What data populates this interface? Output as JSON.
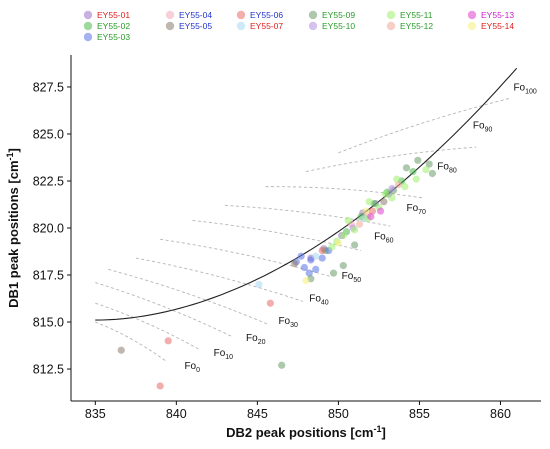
{
  "chart_data": {
    "type": "scatter",
    "title": "",
    "xlabel": "DB2 peak positions [cm",
    "xlabel_sup": "-1",
    "xlabel_end": "]",
    "ylabel": "DB1 peak positions [cm",
    "ylabel_sup": "-1",
    "ylabel_end": "]",
    "xlim": [
      833.5,
      862.5
    ],
    "ylim": [
      810.8,
      829.2
    ],
    "xticks": [
      835,
      840,
      845,
      850,
      855,
      860
    ],
    "yticks": [
      812.5,
      815.0,
      817.5,
      820.0,
      822.5,
      825.0,
      827.5
    ],
    "xtick_labels": [
      "835",
      "840",
      "845",
      "850",
      "855",
      "860"
    ],
    "ytick_labels": [
      "812.5",
      "815.0",
      "817.5",
      "820.0",
      "822.5",
      "825.0",
      "827.5"
    ],
    "legend_position": "top",
    "grid": false,
    "series": [
      {
        "name": "EY55-01",
        "color": "#9b6fc9",
        "text_color": "#e02020",
        "points": [
          [
            848.3,
            818.4
          ],
          [
            849.1,
            818.9
          ],
          [
            850.2,
            819.6
          ],
          [
            851.5,
            820.8
          ],
          [
            852.3,
            821.3
          ],
          [
            853.1,
            821.8
          ]
        ]
      },
      {
        "name": "EY55-02",
        "color": "#4db84d",
        "text_color": "#2a9b2a",
        "points": [
          [
            849.2,
            818.8
          ],
          [
            850.5,
            819.8
          ],
          [
            851.4,
            820.6
          ],
          [
            852.2,
            821.3
          ],
          [
            853.0,
            821.9
          ],
          [
            853.9,
            822.5
          ],
          [
            854.6,
            823.0
          ]
        ]
      },
      {
        "name": "EY55-03",
        "color": "#5a73e8",
        "text_color": "#2a9b2a",
        "points": [
          [
            847.4,
            818.2
          ],
          [
            847.9,
            817.9
          ],
          [
            848.3,
            818.3
          ],
          [
            848.6,
            817.8
          ],
          [
            849.0,
            818.4
          ],
          [
            848.2,
            817.6
          ],
          [
            847.7,
            818.5
          ],
          [
            849.4,
            818.8
          ]
        ]
      },
      {
        "name": "EY55-04",
        "color": "#f0aabb",
        "text_color": "#2233cc",
        "points": [
          [
            850.8,
            820.2
          ],
          [
            851.8,
            820.7
          ]
        ]
      },
      {
        "name": "EY55-05",
        "color": "#8c7b6e",
        "text_color": "#2233cc",
        "points": [
          [
            836.6,
            813.5
          ],
          [
            847.3,
            818.1
          ],
          [
            852.8,
            821.4
          ]
        ]
      },
      {
        "name": "EY55-06",
        "color": "#e86a6a",
        "text_color": "#2233cc",
        "points": [
          [
            839.0,
            811.6
          ],
          [
            839.5,
            814.0
          ],
          [
            845.8,
            816.0
          ],
          [
            849.0,
            818.8
          ],
          [
            852.1,
            820.9
          ]
        ]
      },
      {
        "name": "EY55-07",
        "color": "#a8d8f0",
        "text_color": "#e02020",
        "points": [
          [
            845.1,
            817.0
          ],
          [
            848.6,
            818.5
          ],
          [
            851.6,
            820.5
          ]
        ]
      },
      {
        "name": "EY55-09",
        "color": "#6a9a6a",
        "text_color": "#2a9b2a",
        "points": [
          [
            846.5,
            812.7
          ],
          [
            848.3,
            817.3
          ],
          [
            849.7,
            817.6
          ],
          [
            850.3,
            818.0
          ],
          [
            851.0,
            819.1
          ],
          [
            853.4,
            822.0
          ],
          [
            854.2,
            823.2
          ],
          [
            855.6,
            823.4
          ],
          [
            855.8,
            822.9
          ],
          [
            854.9,
            823.6
          ]
        ]
      },
      {
        "name": "EY55-10",
        "color": "#b58fe0",
        "text_color": "#2a9b2a",
        "points": [
          [
            850.9,
            820.0
          ],
          [
            853.3,
            822.1
          ]
        ]
      },
      {
        "name": "EY55-11",
        "color": "#9cf06a",
        "text_color": "#2a9b2a",
        "points": [
          [
            849.6,
            819.0
          ],
          [
            850.3,
            819.6
          ],
          [
            851.0,
            819.9
          ],
          [
            851.8,
            820.5
          ],
          [
            852.5,
            821.1
          ],
          [
            853.3,
            821.6
          ],
          [
            854.1,
            822.2
          ],
          [
            854.8,
            822.6
          ],
          [
            855.4,
            823.1
          ],
          [
            850.6,
            820.4
          ],
          [
            851.9,
            821.4
          ],
          [
            853.6,
            822.6
          ],
          [
            852.9,
            821.8
          ],
          [
            849.9,
            819.3
          ]
        ]
      },
      {
        "name": "EY55-12",
        "color": "#f0a896",
        "text_color": "#2a9b2a",
        "points": [
          [
            853.7,
            822.3
          ],
          [
            851.3,
            820.2
          ]
        ]
      },
      {
        "name": "EY55-13",
        "color": "#e040d0",
        "text_color": "#cc22cc",
        "points": [
          [
            852.0,
            820.6
          ],
          [
            852.6,
            820.9
          ]
        ]
      },
      {
        "name": "EY55-14",
        "color": "#f5f07a",
        "text_color": "#e02020",
        "points": [
          [
            848.0,
            817.2
          ],
          [
            850.0,
            819.2
          ],
          [
            851.7,
            820.9
          ]
        ]
      }
    ],
    "regression_curve": {
      "x_start": 835.0,
      "x_end": 861.0,
      "y_at_start": 815.1,
      "y_at_end": 828.5,
      "shape": "quadratic"
    },
    "fo_isolines": [
      {
        "label": "Fo",
        "sub": "0",
        "x0": 835.0,
        "y0": 815.0,
        "x1": 839.4,
        "y1": 812.9,
        "lx": 840.5,
        "ly": 812.5
      },
      {
        "label": "Fo",
        "sub": "10",
        "x0": 835.0,
        "y0": 816.0,
        "x1": 841.5,
        "y1": 813.5,
        "lx": 842.3,
        "ly": 813.2
      },
      {
        "label": "Fo",
        "sub": "20",
        "x0": 835.0,
        "y0": 817.1,
        "x1": 843.5,
        "y1": 814.2,
        "lx": 844.3,
        "ly": 814.0
      },
      {
        "label": "Fo",
        "sub": "30",
        "x0": 835.8,
        "y0": 817.8,
        "x1": 845.6,
        "y1": 814.9,
        "lx": 846.3,
        "ly": 814.9
      },
      {
        "label": "Fo",
        "sub": "40",
        "x0": 837.5,
        "y0": 818.4,
        "x1": 847.8,
        "y1": 816.1,
        "lx": 848.2,
        "ly": 816.1
      },
      {
        "label": "Fo",
        "sub": "50",
        "x0": 839.0,
        "y0": 819.4,
        "x1": 849.6,
        "y1": 817.4,
        "lx": 850.2,
        "ly": 817.3
      },
      {
        "label": "Fo",
        "sub": "60",
        "x0": 841.0,
        "y0": 820.4,
        "x1": 851.4,
        "y1": 818.8,
        "lx": 852.2,
        "ly": 819.4
      },
      {
        "label": "Fo",
        "sub": "70",
        "x0": 843.0,
        "y0": 821.2,
        "x1": 853.2,
        "y1": 820.1,
        "lx": 854.2,
        "ly": 820.9
      },
      {
        "label": "Fo",
        "sub": "80",
        "x0": 845.5,
        "y0": 822.2,
        "x1": 855.2,
        "y1": 821.6,
        "lx": 856.1,
        "ly": 823.1
      },
      {
        "label": "Fo",
        "sub": "90",
        "x0": 848.0,
        "y0": 823.0,
        "x1": 858.5,
        "y1": 824.3,
        "lx": 858.3,
        "ly": 825.3
      },
      {
        "label": "Fo",
        "sub": "100",
        "x0": 850.0,
        "y0": 824.0,
        "x1": 860.6,
        "y1": 826.9,
        "lx": 860.8,
        "ly": 827.3
      }
    ]
  }
}
